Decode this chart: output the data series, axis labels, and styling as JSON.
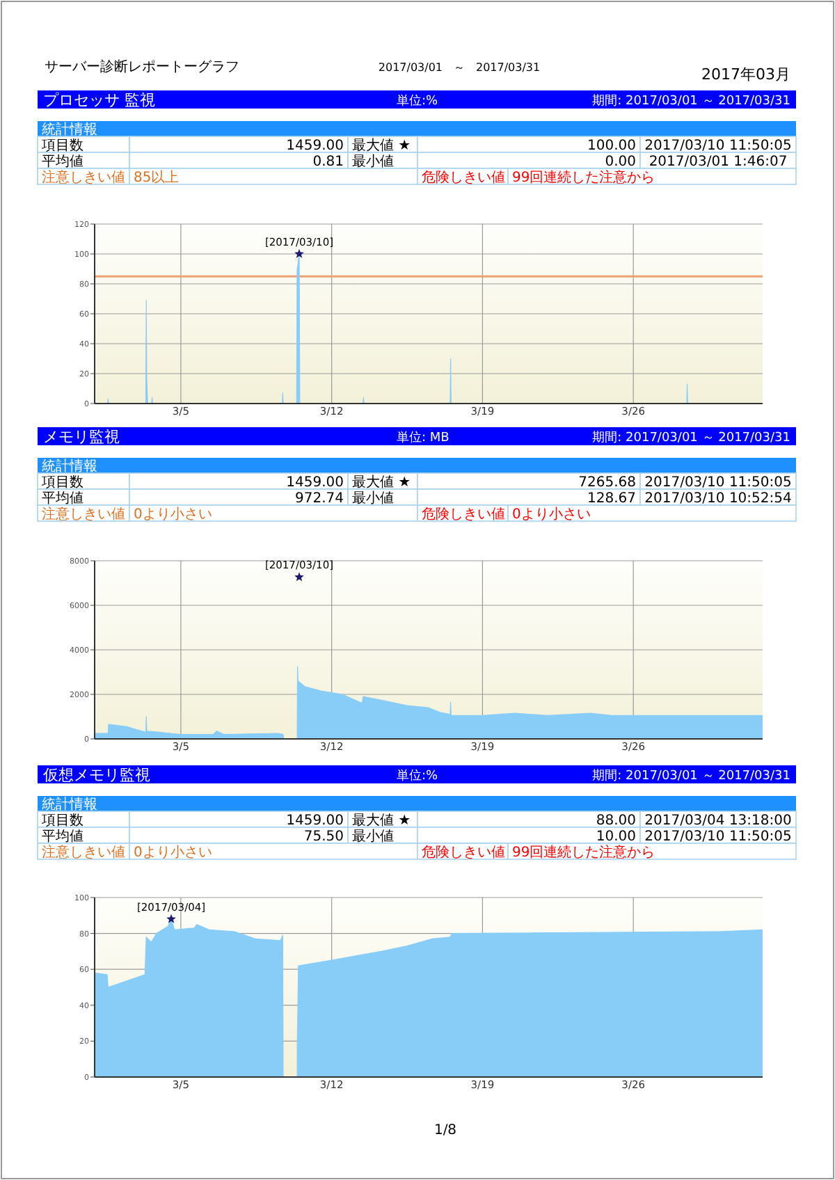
{
  "chart_data": [
    {
      "type": "other",
      "title": "サーバー診断レポートーグラフ",
      "annotations": [
        "2017/03/01　～　2017/03/31",
        "2017年03月",
        "1/8"
      ]
    },
    {
      "type": "other",
      "title": "プロセッサ 監視",
      "subtitle": "単位:%",
      "annotations": [
        "期間: 2017/03/01 ～ 2017/03/31",
        "統計情報",
        "項目数",
        "1459.00",
        "最大値 ★",
        "100.00",
        "2017/03/10 11:50:05",
        "平均値",
        "0.81",
        "最小値",
        "0.00",
        "2017/03/01 1:46:07",
        "注意しきい値",
        "85以上",
        "危険しきい値",
        "99回連続した注意から"
      ]
    },
    {
      "type": "area",
      "xlim": [
        "2017-03-01",
        "2017-04-01"
      ],
      "xticks": [
        {
          "value": "2017-03-05",
          "label": "3/5"
        },
        {
          "value": "2017-03-12",
          "label": "3/12"
        },
        {
          "value": "2017-03-19",
          "label": "3/19"
        },
        {
          "value": "2017-03-26",
          "label": "3/26"
        }
      ],
      "ylim": [
        0,
        120
      ],
      "yticks": [
        0,
        20,
        40,
        60,
        80,
        100,
        120
      ],
      "grid": true,
      "ref_lines": [
        {
          "axis": "y",
          "value": 85,
          "color": "#f0a070"
        }
      ],
      "annotations": [
        {
          "text": "[2017/03/10]",
          "x": "2017-03-10T11:50",
          "y": 100
        }
      ],
      "series": [
        {
          "type": "area",
          "color": "#88ccf8",
          "x": [
            "2017-03-01T00:00",
            "2017-03-01T14:30",
            "2017-03-01T15:00",
            "2017-03-01T15:30",
            "2017-03-03T09:00",
            "2017-03-03T09:30",
            "2017-03-03T10:00",
            "2017-03-03T11:00",
            "2017-03-03T15:30",
            "2017-03-03T16:00",
            "2017-03-03T16:30",
            "2017-03-09T17:00",
            "2017-03-09T17:30",
            "2017-03-09T18:00",
            "2017-03-10T09:00",
            "2017-03-10T09:30",
            "2017-03-10T11:50",
            "2017-03-10T12:30",
            "2017-03-13T11:00",
            "2017-03-13T11:30",
            "2017-03-13T12:00",
            "2017-03-17T12:00",
            "2017-03-17T12:30",
            "2017-03-17T13:00",
            "2017-03-28T11:30",
            "2017-03-28T12:00",
            "2017-03-28T12:30",
            "2017-03-31T23:30"
          ],
          "values": [
            0,
            0,
            3,
            0,
            0,
            69,
            18,
            0,
            0,
            4,
            0,
            0,
            7,
            0,
            0,
            89,
            100,
            0,
            0,
            4,
            0,
            0,
            30,
            0,
            0,
            13,
            0,
            0
          ]
        },
        {
          "type": "scatter",
          "marker": "star",
          "color": "#1a1a70",
          "x": [
            "2017-03-10T11:50"
          ],
          "values": [
            100
          ]
        }
      ]
    },
    {
      "type": "other",
      "title": "メモリ監視",
      "subtitle": "単位: MB",
      "annotations": [
        "期間: 2017/03/01 ～ 2017/03/31",
        "統計情報",
        "項目数",
        "1459.00",
        "最大値 ★",
        "7265.68",
        "2017/03/10 11:50:05",
        "平均値",
        "972.74",
        "最小値",
        "128.67",
        "2017/03/10 10:52:54",
        "注意しきい値",
        "0より小さい",
        "危険しきい値",
        "0より小さい"
      ]
    },
    {
      "type": "area",
      "xlim": [
        "2017-03-01",
        "2017-04-01"
      ],
      "xticks": [
        {
          "value": "2017-03-05",
          "label": "3/5"
        },
        {
          "value": "2017-03-12",
          "label": "3/12"
        },
        {
          "value": "2017-03-19",
          "label": "3/19"
        },
        {
          "value": "2017-03-26",
          "label": "3/26"
        }
      ],
      "ylim": [
        0,
        8000
      ],
      "yticks": [
        0,
        2000,
        4000,
        6000,
        8000
      ],
      "grid": true,
      "annotations": [
        {
          "text": "[2017/03/10]",
          "x": "2017-03-10T11:50",
          "y": 7265.68
        }
      ],
      "series": [
        {
          "type": "area",
          "color": "#88ccf8",
          "x": [
            "2017-03-01T00:00",
            "2017-03-01T15:00",
            "2017-03-01T15:30",
            "2017-03-02T12:00",
            "2017-03-03T00:00",
            "2017-03-03T09:00",
            "2017-03-03T09:30",
            "2017-03-03T10:00",
            "2017-03-04T00:00",
            "2017-03-04T12:00",
            "2017-03-05T00:00",
            "2017-03-06T12:00",
            "2017-03-06T16:00",
            "2017-03-07T00:00",
            "2017-03-09T12:00",
            "2017-03-09T18:00",
            "2017-03-09T18:30",
            "2017-03-10T09:40",
            "2017-03-10T10:00",
            "2017-03-10T10:30",
            "2017-03-10T18:00",
            "2017-03-11T12:00",
            "2017-03-12T12:00",
            "2017-03-13T10:00",
            "2017-03-13T11:00",
            "2017-03-14T12:00",
            "2017-03-15T12:00",
            "2017-03-16T12:00",
            "2017-03-17T00:00",
            "2017-03-17T12:00",
            "2017-03-17T12:30",
            "2017-03-17T13:00",
            "2017-03-19T00:00",
            "2017-03-20T12:00",
            "2017-03-22T00:00",
            "2017-03-24T00:00",
            "2017-03-25T00:00",
            "2017-03-31T23:30"
          ],
          "values": [
            250,
            250,
            650,
            550,
            400,
            300,
            1000,
            350,
            300,
            250,
            200,
            200,
            350,
            200,
            250,
            200,
            null,
            700,
            3250,
            2600,
            2350,
            2150,
            2000,
            1600,
            1900,
            1700,
            1500,
            1400,
            1200,
            1100,
            1650,
            1050,
            1050,
            1150,
            1050,
            1150,
            1050,
            1050
          ]
        },
        {
          "type": "scatter",
          "marker": "star",
          "color": "#1a1a70",
          "x": [
            "2017-03-10T11:50"
          ],
          "values": [
            7265.68
          ]
        }
      ]
    },
    {
      "type": "other",
      "title": "仮想メモリ監視",
      "subtitle": "単位:%",
      "annotations": [
        "期間: 2017/03/01 ～ 2017/03/31",
        "統計情報",
        "項目数",
        "1459.00",
        "最大値 ★",
        "88.00",
        "2017/03/04 13:18:00",
        "平均値",
        "75.50",
        "最小値",
        "10.00",
        "2017/03/10 11:50:05",
        "注意しきい値",
        "0より小さい",
        "危険しきい値",
        "99回連続した注意から"
      ]
    },
    {
      "type": "area",
      "xlim": [
        "2017-03-01",
        "2017-04-01"
      ],
      "xticks": [
        {
          "value": "2017-03-05",
          "label": "3/5"
        },
        {
          "value": "2017-03-12",
          "label": "3/12"
        },
        {
          "value": "2017-03-19",
          "label": "3/19"
        },
        {
          "value": "2017-03-26",
          "label": "3/26"
        }
      ],
      "ylim": [
        0,
        100
      ],
      "yticks": [
        0,
        20,
        40,
        60,
        80,
        100
      ],
      "grid": true,
      "annotations": [
        {
          "text": "[2017/03/04]",
          "x": "2017-03-04T13:18",
          "y": 88
        }
      ],
      "series": [
        {
          "type": "area",
          "color": "#88ccf8",
          "x": [
            "2017-03-01T00:00",
            "2017-03-01T14:00",
            "2017-03-01T15:00",
            "2017-03-03T08:00",
            "2017-03-03T09:30",
            "2017-03-03T15:00",
            "2017-03-03T21:00",
            "2017-03-04T09:50",
            "2017-03-04T13:18",
            "2017-03-04T17:00",
            "2017-03-05T15:00",
            "2017-03-05T18:00",
            "2017-03-06T08:00",
            "2017-03-07T12:00",
            "2017-03-08T11:00",
            "2017-03-09T15:00",
            "2017-03-09T17:30",
            "2017-03-09T18:00",
            "2017-03-10T09:40",
            "2017-03-10T11:00",
            "2017-03-11T23:00",
            "2017-03-14T07:00",
            "2017-03-15T12:00",
            "2017-03-16T16:00",
            "2017-03-17T12:00",
            "2017-03-17T14:00",
            "2017-03-29T22:00",
            "2017-03-31T23:30"
          ],
          "values": [
            58,
            57,
            50,
            57,
            78,
            75,
            80,
            84,
            88,
            82,
            83,
            85,
            82,
            81,
            77,
            76,
            79,
            null,
            18,
            62,
            65,
            70,
            73,
            77,
            78,
            80,
            81,
            82
          ]
        },
        {
          "type": "scatter",
          "marker": "star",
          "color": "#1a1a70",
          "x": [
            "2017-03-04T13:18"
          ],
          "values": [
            88
          ]
        }
      ]
    }
  ]
}
